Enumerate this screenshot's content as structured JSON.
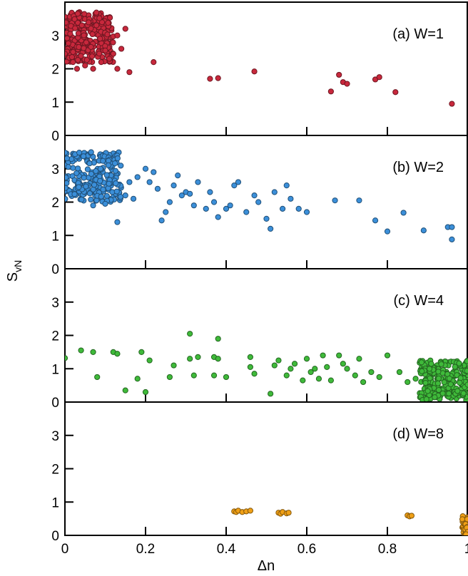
{
  "figure": {
    "ylabel": "S",
    "ylabel_sub": "vN",
    "xlabel": "Δn"
  },
  "chart_data": [
    {
      "type": "scatter",
      "panel_label": "(a) W=1",
      "color": "#c8283c",
      "x_range": [
        0,
        1
      ],
      "ylim": [
        0,
        4
      ],
      "yticks": [
        0,
        1,
        2,
        3
      ],
      "xticks": [
        0.2,
        0.4,
        0.6,
        0.8
      ],
      "cluster": {
        "x": [
          0.0,
          0.12
        ],
        "y": [
          2.2,
          3.7
        ],
        "count": 260
      },
      "points": [
        [
          0.0,
          2.45
        ],
        [
          0.02,
          2.2
        ],
        [
          0.03,
          2.0
        ],
        [
          0.05,
          2.1
        ],
        [
          0.07,
          2.0
        ],
        [
          0.09,
          2.2
        ],
        [
          0.1,
          2.55
        ],
        [
          0.12,
          2.45
        ],
        [
          0.14,
          2.6
        ],
        [
          0.15,
          3.2
        ],
        [
          0.16,
          1.9
        ],
        [
          0.13,
          2.0
        ],
        [
          0.11,
          2.3
        ],
        [
          0.13,
          3.0
        ],
        [
          0.22,
          2.2
        ],
        [
          0.36,
          1.7
        ],
        [
          0.38,
          1.72
        ],
        [
          0.47,
          1.92
        ],
        [
          0.66,
          1.32
        ],
        [
          0.68,
          1.82
        ],
        [
          0.69,
          1.6
        ],
        [
          0.7,
          1.55
        ],
        [
          0.77,
          1.68
        ],
        [
          0.78,
          1.75
        ],
        [
          0.82,
          1.3
        ],
        [
          0.96,
          0.95
        ]
      ]
    },
    {
      "type": "scatter",
      "panel_label": "(b) W=2",
      "color": "#3b8fd9",
      "x_range": [
        0,
        1
      ],
      "ylim": [
        0,
        4
      ],
      "yticks": [
        0,
        1,
        2,
        3
      ],
      "xticks": [
        0.2,
        0.4,
        0.6,
        0.8
      ],
      "cluster": {
        "x": [
          0.0,
          0.14
        ],
        "y": [
          2.0,
          3.5
        ],
        "count": 230
      },
      "points": [
        [
          0.07,
          1.9
        ],
        [
          0.1,
          1.95
        ],
        [
          0.13,
          1.4
        ],
        [
          0.15,
          2.2
        ],
        [
          0.16,
          2.6
        ],
        [
          0.17,
          2.1
        ],
        [
          0.18,
          2.75
        ],
        [
          0.2,
          3.0
        ],
        [
          0.21,
          2.6
        ],
        [
          0.22,
          2.9
        ],
        [
          0.23,
          2.4
        ],
        [
          0.24,
          1.45
        ],
        [
          0.25,
          1.7
        ],
        [
          0.26,
          2.0
        ],
        [
          0.27,
          2.5
        ],
        [
          0.28,
          2.8
        ],
        [
          0.29,
          2.2
        ],
        [
          0.3,
          2.3
        ],
        [
          0.31,
          2.25
        ],
        [
          0.32,
          1.9
        ],
        [
          0.33,
          2.6
        ],
        [
          0.35,
          1.8
        ],
        [
          0.36,
          2.3
        ],
        [
          0.37,
          2.0
        ],
        [
          0.38,
          1.55
        ],
        [
          0.4,
          1.8
        ],
        [
          0.41,
          1.9
        ],
        [
          0.42,
          2.5
        ],
        [
          0.43,
          2.6
        ],
        [
          0.45,
          1.7
        ],
        [
          0.47,
          2.2
        ],
        [
          0.48,
          2.0
        ],
        [
          0.5,
          1.5
        ],
        [
          0.51,
          1.2
        ],
        [
          0.52,
          2.3
        ],
        [
          0.54,
          1.8
        ],
        [
          0.55,
          2.5
        ],
        [
          0.56,
          2.1
        ],
        [
          0.58,
          1.8
        ],
        [
          0.6,
          1.7
        ],
        [
          0.67,
          2.05
        ],
        [
          0.73,
          2.05
        ],
        [
          0.77,
          1.45
        ],
        [
          0.8,
          1.12
        ],
        [
          0.84,
          1.68
        ],
        [
          0.89,
          1.15
        ],
        [
          0.95,
          1.25
        ],
        [
          0.96,
          1.25
        ],
        [
          0.96,
          0.88
        ]
      ]
    },
    {
      "type": "scatter",
      "panel_label": "(c) W=4",
      "color": "#3fba3a",
      "x_range": [
        0,
        1
      ],
      "ylim": [
        0,
        4
      ],
      "yticks": [
        0,
        1,
        2,
        3
      ],
      "xticks": [
        0.2,
        0.4,
        0.6,
        0.8
      ],
      "cluster": {
        "x": [
          0.88,
          1.0
        ],
        "y": [
          0.05,
          1.25
        ],
        "count": 240
      },
      "points": [
        [
          0.0,
          1.32
        ],
        [
          0.04,
          1.55
        ],
        [
          0.07,
          1.5
        ],
        [
          0.08,
          0.75
        ],
        [
          0.12,
          1.5
        ],
        [
          0.13,
          1.45
        ],
        [
          0.15,
          0.35
        ],
        [
          0.18,
          0.7
        ],
        [
          0.19,
          1.5
        ],
        [
          0.2,
          0.3
        ],
        [
          0.21,
          1.25
        ],
        [
          0.26,
          0.75
        ],
        [
          0.27,
          1.1
        ],
        [
          0.31,
          2.05
        ],
        [
          0.31,
          1.3
        ],
        [
          0.32,
          0.8
        ],
        [
          0.33,
          1.35
        ],
        [
          0.37,
          1.35
        ],
        [
          0.38,
          1.9
        ],
        [
          0.38,
          1.3
        ],
        [
          0.37,
          0.8
        ],
        [
          0.4,
          0.75
        ],
        [
          0.46,
          1.35
        ],
        [
          0.46,
          1.05
        ],
        [
          0.47,
          0.85
        ],
        [
          0.51,
          0.25
        ],
        [
          0.52,
          1.1
        ],
        [
          0.53,
          1.25
        ],
        [
          0.55,
          0.8
        ],
        [
          0.56,
          1.0
        ],
        [
          0.57,
          1.15
        ],
        [
          0.59,
          0.65
        ],
        [
          0.6,
          1.3
        ],
        [
          0.61,
          0.9
        ],
        [
          0.62,
          1.0
        ],
        [
          0.63,
          0.7
        ],
        [
          0.64,
          1.4
        ],
        [
          0.65,
          1.05
        ],
        [
          0.66,
          0.65
        ],
        [
          0.68,
          1.4
        ],
        [
          0.69,
          1.15
        ],
        [
          0.7,
          1.0
        ],
        [
          0.72,
          0.8
        ],
        [
          0.73,
          1.3
        ],
        [
          0.74,
          0.6
        ],
        [
          0.76,
          0.9
        ],
        [
          0.78,
          0.75
        ],
        [
          0.8,
          1.4
        ],
        [
          0.83,
          0.9
        ],
        [
          0.85,
          0.6
        ],
        [
          0.87,
          0.7
        ]
      ]
    },
    {
      "type": "scatter",
      "panel_label": "(d) W=8",
      "color": "#f0a016",
      "x_range": [
        0,
        1
      ],
      "ylim": [
        0,
        4
      ],
      "yticks": [
        0,
        1,
        2,
        3
      ],
      "xticks": [
        0,
        0.2,
        0.4,
        0.6,
        0.8,
        1
      ],
      "xticklabels": [
        "0",
        "0.2",
        "0.4",
        "0.6",
        "0.8",
        "1"
      ],
      "cluster": {
        "x": [
          0.985,
          1.0
        ],
        "y": [
          0.0,
          0.6
        ],
        "count": 45
      },
      "points": [
        [
          0.42,
          0.72
        ],
        [
          0.425,
          0.7
        ],
        [
          0.43,
          0.74
        ],
        [
          0.44,
          0.7
        ],
        [
          0.45,
          0.72
        ],
        [
          0.46,
          0.74
        ],
        [
          0.53,
          0.68
        ],
        [
          0.535,
          0.65
        ],
        [
          0.54,
          0.7
        ],
        [
          0.55,
          0.66
        ],
        [
          0.555,
          0.68
        ],
        [
          0.85,
          0.6
        ],
        [
          0.855,
          0.57
        ],
        [
          0.86,
          0.59
        ]
      ]
    }
  ]
}
